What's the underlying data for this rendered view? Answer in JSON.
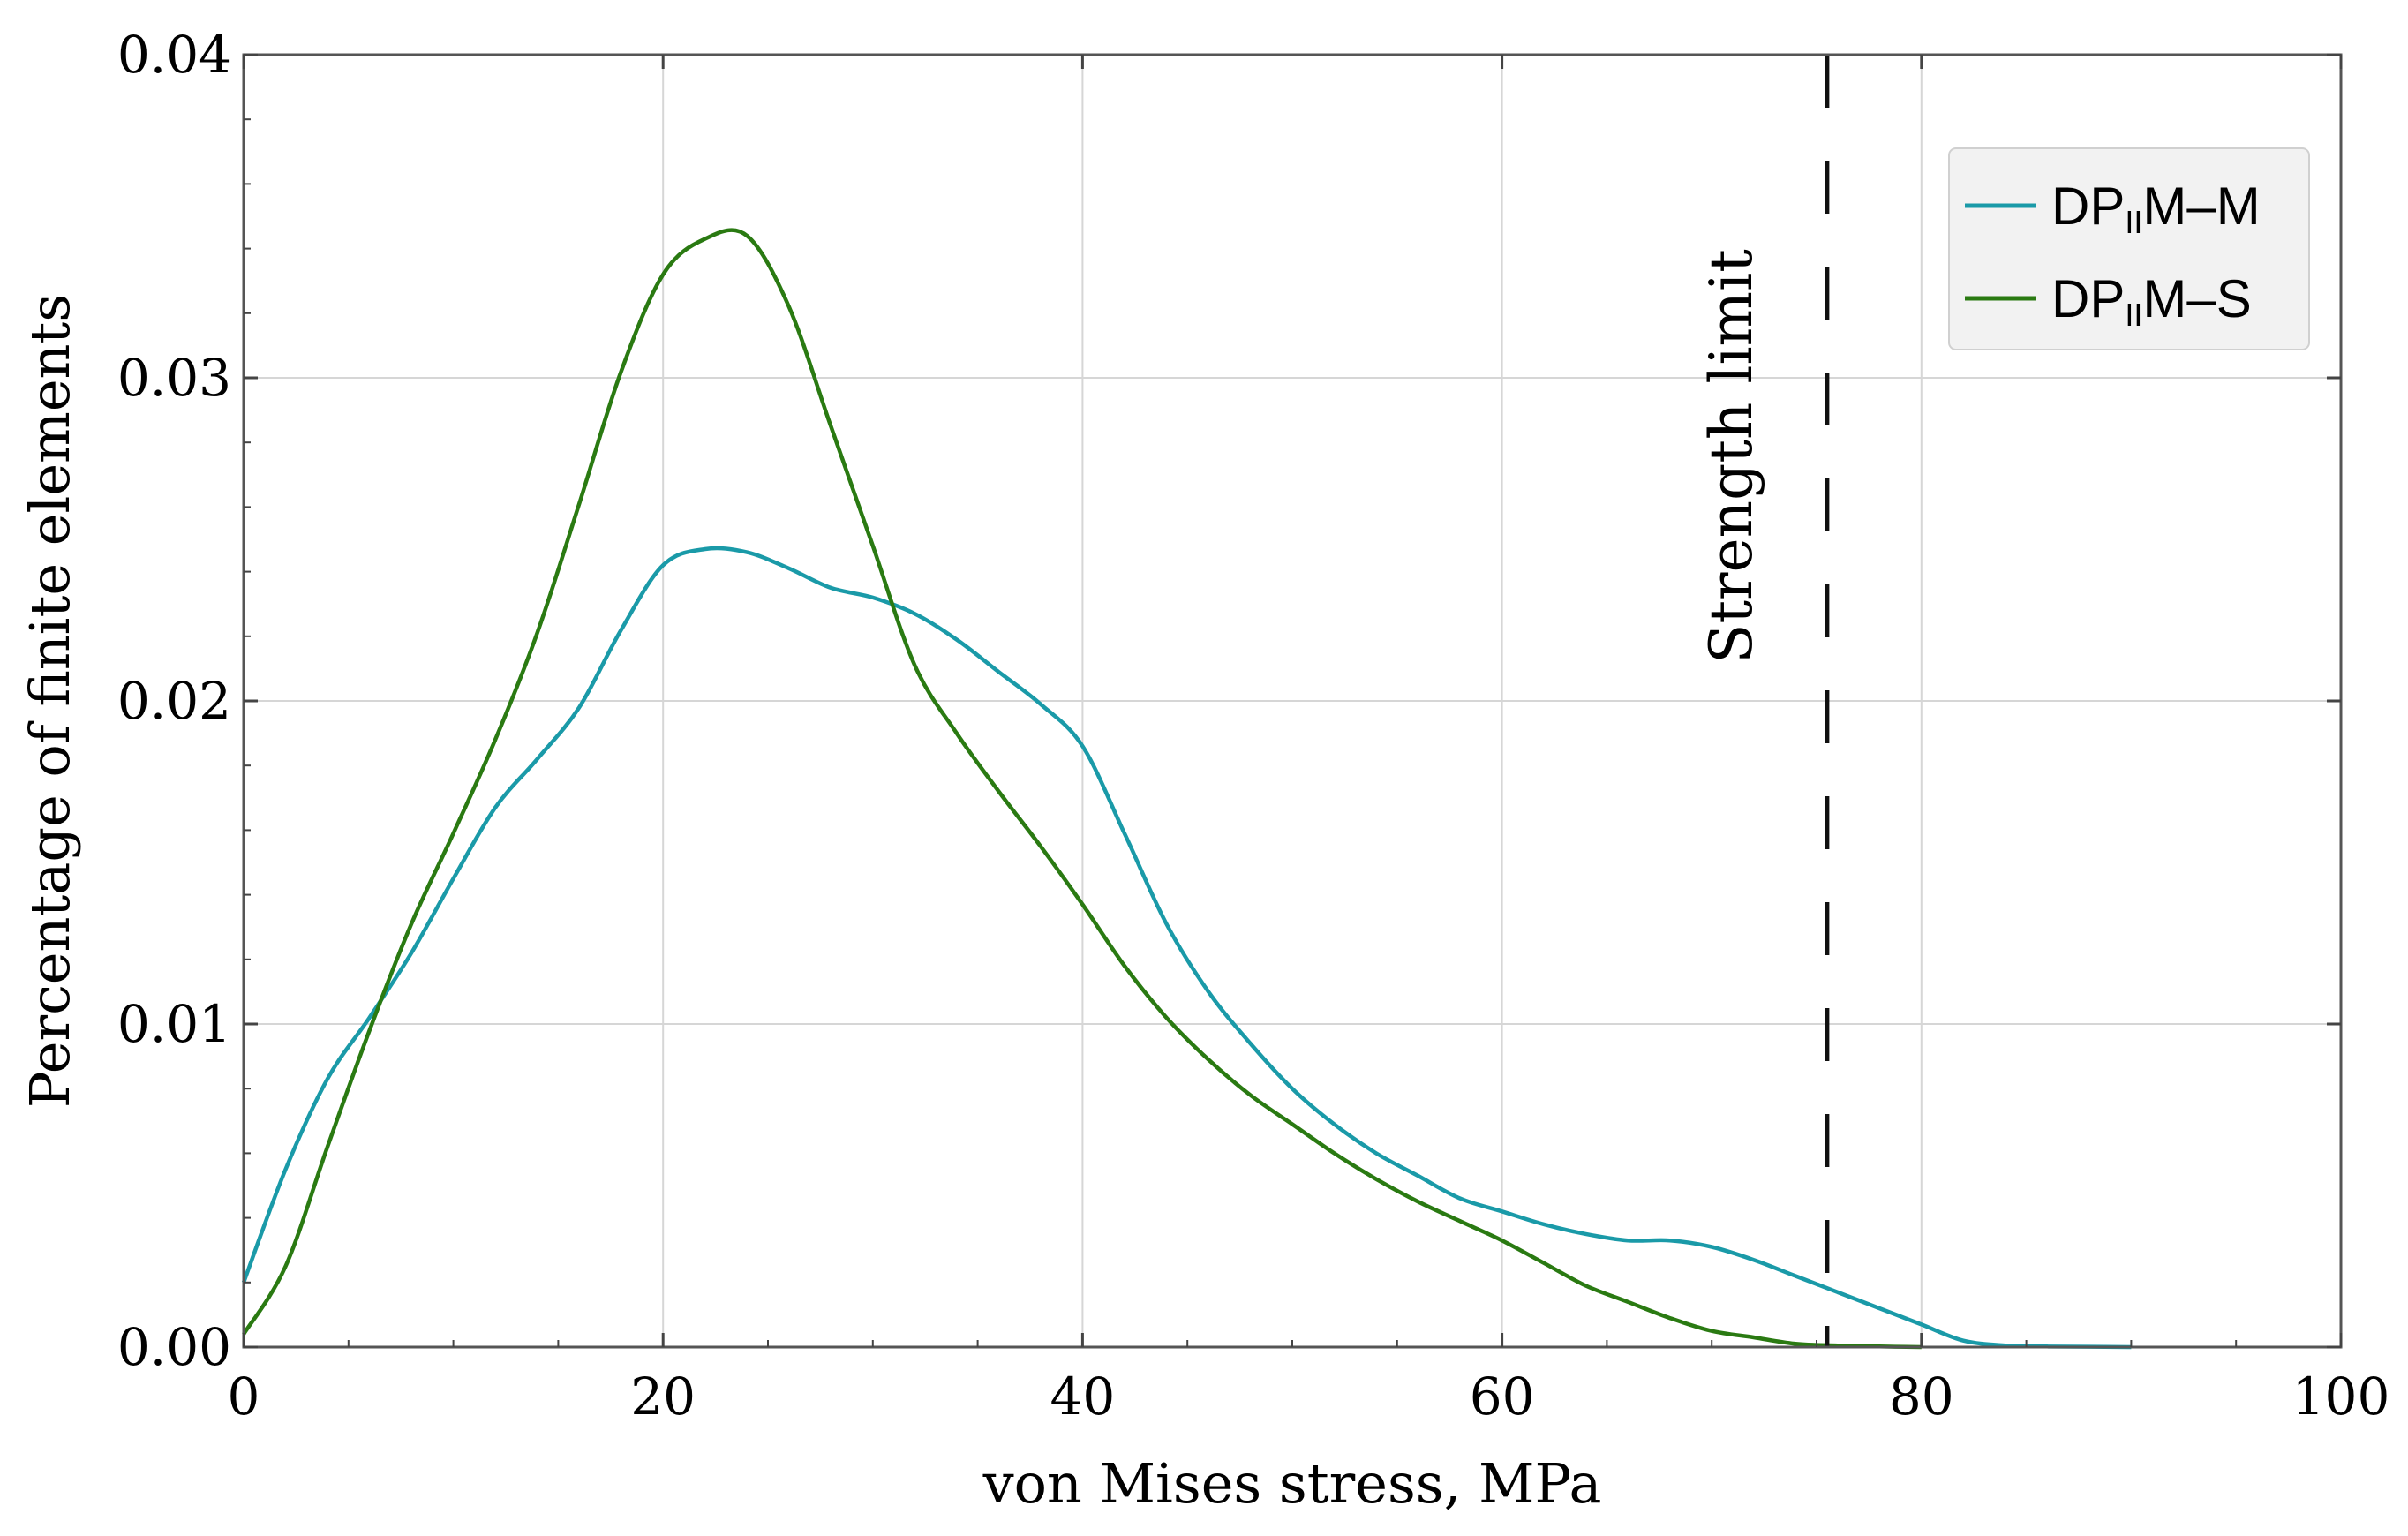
{
  "chart_data": {
    "type": "line",
    "title": "",
    "xlabel": "von Mises stress,  MPa",
    "ylabel": "Percentage of finite elements",
    "xlim": [
      0,
      100
    ],
    "ylim": [
      0,
      0.04
    ],
    "grid": true,
    "x_ticks": [
      0,
      20,
      40,
      60,
      80,
      100
    ],
    "x_tick_labels": [
      "0",
      "20",
      "40",
      "60",
      "80",
      "100"
    ],
    "y_ticks": [
      0,
      0.01,
      0.02,
      0.03,
      0.04
    ],
    "y_tick_labels": [
      "0.00",
      "0.01",
      "0.02",
      "0.03",
      "0.04"
    ],
    "legend_position": "top-right",
    "annotations": [
      {
        "text": "Strength limit",
        "x": 75.5,
        "orientation": "vertical",
        "style": "dashed"
      }
    ],
    "series": [
      {
        "name": "DP_IIM–M",
        "legend_main": "DP",
        "legend_sub": "II",
        "legend_suffix": "M–M",
        "color": "#1a9aa8",
        "x": [
          0,
          2,
          4,
          6,
          8,
          10,
          12,
          14,
          16,
          18,
          20,
          22,
          24,
          26,
          28,
          30,
          32,
          34,
          36,
          38,
          40,
          42,
          44,
          46,
          48,
          50,
          52,
          54,
          56,
          58,
          60,
          62,
          64,
          66,
          68,
          70,
          72,
          74,
          76,
          78,
          80,
          82,
          84,
          86,
          88,
          90
        ],
        "y": [
          0.002,
          0.0055,
          0.0083,
          0.0102,
          0.0122,
          0.0145,
          0.0167,
          0.0182,
          0.0198,
          0.0222,
          0.0242,
          0.0247,
          0.0246,
          0.0241,
          0.0235,
          0.0232,
          0.0227,
          0.0219,
          0.0209,
          0.0199,
          0.0186,
          0.0159,
          0.0131,
          0.011,
          0.0094,
          0.008,
          0.0069,
          0.006,
          0.0053,
          0.0046,
          0.0042,
          0.0038,
          0.0035,
          0.0033,
          0.0033,
          0.0031,
          0.0027,
          0.0022,
          0.0017,
          0.0012,
          0.0007,
          0.0002,
          5e-05,
          2e-05,
          1e-05,
          0.0
        ]
      },
      {
        "name": "DP_IIM–S",
        "legend_main": "DP",
        "legend_sub": "II",
        "legend_suffix": "M–S",
        "color": "#2a7a12",
        "x": [
          0,
          2,
          4,
          6,
          8,
          10,
          12,
          14,
          16,
          18,
          20,
          22,
          24,
          26,
          28,
          30,
          32,
          34,
          36,
          38,
          40,
          42,
          44,
          46,
          48,
          50,
          52,
          54,
          56,
          58,
          60,
          62,
          64,
          66,
          68,
          70,
          72,
          74,
          76,
          78,
          80
        ],
        "y": [
          0.0004,
          0.0025,
          0.0062,
          0.0098,
          0.0131,
          0.0159,
          0.0188,
          0.0221,
          0.0261,
          0.0302,
          0.0332,
          0.0343,
          0.0344,
          0.0322,
          0.0285,
          0.0248,
          0.0211,
          0.019,
          0.0172,
          0.0155,
          0.0137,
          0.0118,
          0.0102,
          0.0089,
          0.0078,
          0.0069,
          0.006,
          0.0052,
          0.0045,
          0.0039,
          0.0033,
          0.0026,
          0.0019,
          0.0014,
          0.0009,
          0.0005,
          0.0003,
          0.0001,
          5e-05,
          2e-05,
          0.0
        ]
      }
    ]
  }
}
